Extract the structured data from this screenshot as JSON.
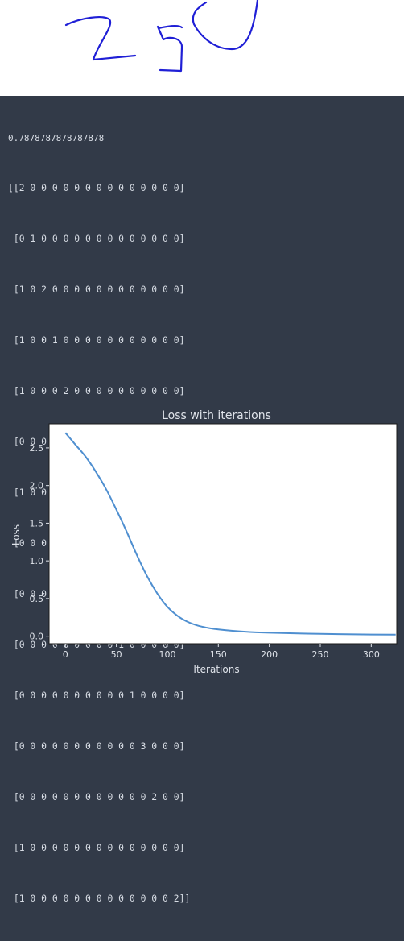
{
  "handwriting": {
    "content": "250",
    "stroke_color": "#1f1fd6"
  },
  "output": {
    "accuracy": "0.7878787878787878",
    "matrix_rows": [
      "[[2 0 0 0 0 0 0 0 0 0 0 0 0 0 0]",
      " [0 1 0 0 0 0 0 0 0 0 0 0 0 0 0]",
      " [1 0 2 0 0 0 0 0 0 0 0 0 0 0 0]",
      " [1 0 0 1 0 0 0 0 0 0 0 0 0 0 0]",
      " [1 0 0 0 2 0 0 0 0 0 0 0 0 0 0]",
      " [0 0 0 0 0 1 0 0 0 0 0 0 0 0 0]",
      " [1 0 0 0 0 0 3 0 0 0 0 0 0 0 0]",
      " [0 0 0 0 0 0 0 4 0 0 0 0 0 0 0]",
      " [0 0 0 0 1 0 0 0 1 0 0 0 0 0 0]",
      " [0 0 0 0 0 0 0 0 0 1 0 0 0 0 0]",
      " [0 0 0 0 0 0 0 0 0 0 1 0 0 0 0]",
      " [0 0 0 0 0 0 0 0 0 0 0 3 0 0 0]",
      " [0 0 0 0 0 0 0 0 0 0 0 0 2 0 0]",
      " [1 0 0 0 0 0 0 0 0 0 0 0 0 0 0]",
      " [1 0 0 0 0 0 0 0 0 0 0 0 0 0 2]]"
    ]
  },
  "chart_data": {
    "type": "line",
    "title": "Loss with iterations",
    "xlabel": "Iterations",
    "ylabel": "Loss",
    "x_ticks": [
      0,
      50,
      100,
      150,
      200,
      250,
      300
    ],
    "y_ticks": [
      "0.0",
      "0.5",
      "1.0",
      "1.5",
      "2.0",
      "2.5"
    ],
    "x_tick_values": [
      0,
      50,
      100,
      150,
      200,
      250,
      300
    ],
    "y_tick_values": [
      0.0,
      0.5,
      1.0,
      1.5,
      2.0,
      2.5
    ],
    "xlim": [
      -16,
      325
    ],
    "ylim": [
      -0.1,
      2.82
    ],
    "grid": false,
    "series": [
      {
        "color": "#4f8fd0",
        "x": [
          0,
          10,
          20,
          30,
          40,
          50,
          60,
          70,
          80,
          90,
          100,
          110,
          120,
          130,
          140,
          150,
          175,
          200,
          250,
          300,
          324
        ],
        "y": [
          2.7,
          2.54,
          2.38,
          2.18,
          1.95,
          1.68,
          1.39,
          1.08,
          0.8,
          0.57,
          0.39,
          0.27,
          0.19,
          0.14,
          0.11,
          0.09,
          0.06,
          0.045,
          0.03,
          0.022,
          0.02
        ]
      }
    ]
  }
}
